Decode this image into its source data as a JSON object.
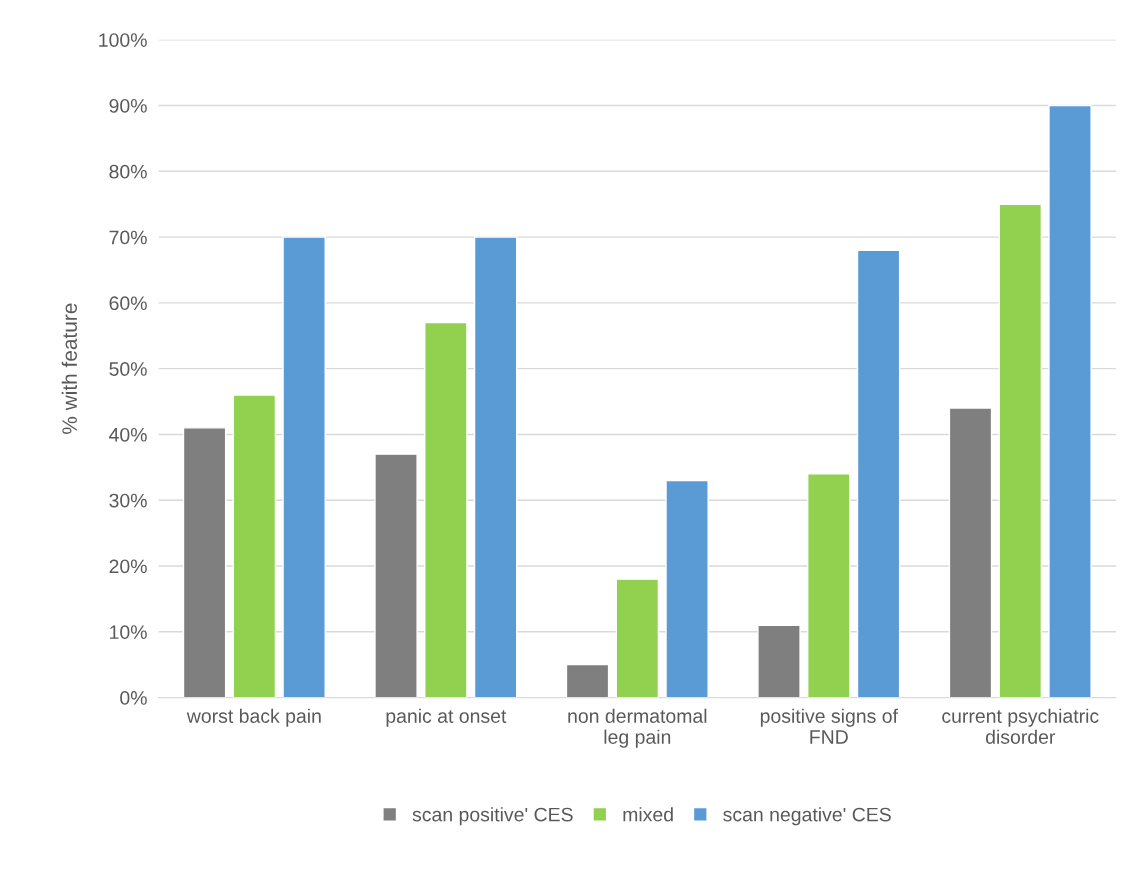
{
  "chart_data": {
    "type": "bar",
    "ylabel": "% with feature",
    "categories": [
      "worst back pain",
      "panic at onset",
      "non dermatomal\nleg pain",
      "positive signs of\nFND",
      "current psychiatric\ndisorder"
    ],
    "series": [
      {
        "name": "scan positive' CES",
        "color": "#7f7f7f",
        "values": [
          41,
          37,
          5,
          11,
          44
        ]
      },
      {
        "name": "mixed",
        "color": "#92d050",
        "values": [
          46,
          57,
          18,
          34,
          75
        ]
      },
      {
        "name": "scan negative' CES",
        "color": "#5b9bd5",
        "values": [
          70,
          70,
          33,
          68,
          90
        ]
      }
    ],
    "ylim": [
      0,
      100
    ],
    "yticks": [
      {
        "value": 0,
        "label": "0%"
      },
      {
        "value": 10,
        "label": "10%"
      },
      {
        "value": 20,
        "label": "20%"
      },
      {
        "value": 30,
        "label": "30%"
      },
      {
        "value": 40,
        "label": "40%"
      },
      {
        "value": 50,
        "label": "50%"
      },
      {
        "value": 60,
        "label": "60%"
      },
      {
        "value": 70,
        "label": "70%"
      },
      {
        "value": 80,
        "label": "80%"
      },
      {
        "value": 90,
        "label": "90%"
      },
      {
        "value": 100,
        "label": "100%"
      }
    ],
    "grid": "y",
    "legend": "bottom"
  }
}
